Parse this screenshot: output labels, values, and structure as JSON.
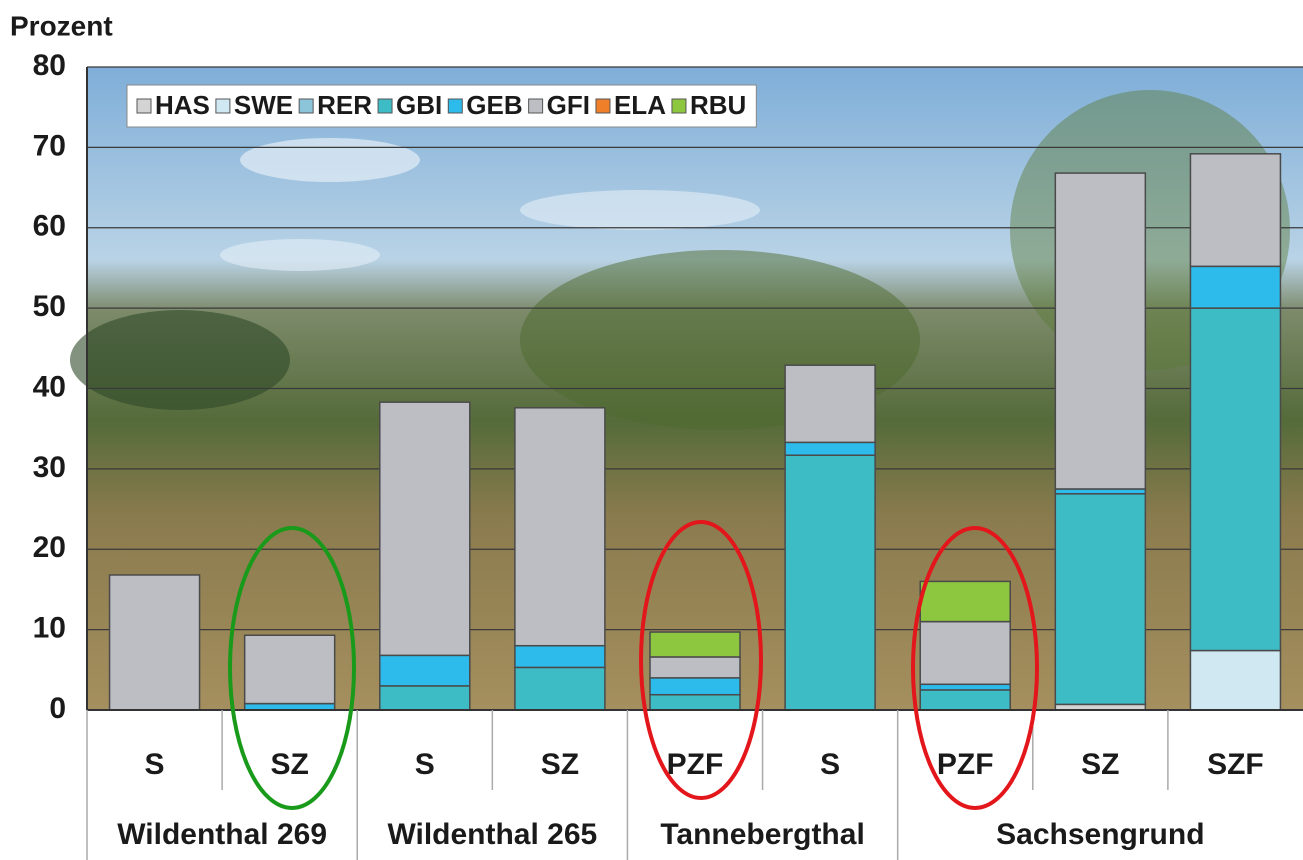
{
  "chart_data": {
    "type": "stacked-bar",
    "y_label": "Prozent",
    "groups": [
      {
        "label": "Wildenthal 269",
        "categories": [
          "S",
          "SZ"
        ]
      },
      {
        "label": "Wildenthal 265",
        "categories": [
          "S",
          "SZ"
        ]
      },
      {
        "label": "Tannebergthal",
        "categories": [
          "PZF",
          "S"
        ]
      },
      {
        "label": "Sachsengrund",
        "categories": [
          "PZF",
          "SZ",
          "SZF"
        ]
      }
    ],
    "series": [
      {
        "name": "HAS",
        "color": "#d4d4d4",
        "values": [
          0,
          0,
          0,
          0,
          0,
          0,
          0,
          0.7,
          0
        ]
      },
      {
        "name": "SWE",
        "color": "#cfe8f2",
        "values": [
          0,
          0,
          0,
          0,
          0,
          0,
          0,
          0,
          7.4
        ]
      },
      {
        "name": "RER",
        "color": "#8cc4da",
        "values": [
          0,
          0,
          0,
          0,
          0,
          0,
          0,
          0,
          0
        ]
      },
      {
        "name": "GBI",
        "color": "#3dbcc6",
        "values": [
          0,
          0,
          3.0,
          5.3,
          1.9,
          31.7,
          2.5,
          26.2,
          42.6
        ]
      },
      {
        "name": "GEB",
        "color": "#2cbbea",
        "values": [
          0,
          0.8,
          3.8,
          2.7,
          2.1,
          1.6,
          0.7,
          0.6,
          5.2
        ]
      },
      {
        "name": "GFI",
        "color": "#bdbec3",
        "values": [
          16.8,
          8.5,
          31.5,
          29.6,
          2.6,
          9.6,
          7.8,
          39.3,
          14.0
        ]
      },
      {
        "name": "ELA",
        "color": "#f07f2a",
        "values": [
          0,
          0,
          0,
          0,
          0,
          0,
          0,
          0,
          0
        ]
      },
      {
        "name": "RBU",
        "color": "#8dc63f",
        "values": [
          0,
          0,
          0,
          0,
          3.1,
          0,
          5.0,
          0,
          0
        ]
      }
    ],
    "ylim": [
      0,
      80
    ],
    "yticks": [
      0,
      10,
      20,
      30,
      40,
      50,
      60,
      70,
      80
    ],
    "grid": true,
    "legend": "top-left"
  }
}
